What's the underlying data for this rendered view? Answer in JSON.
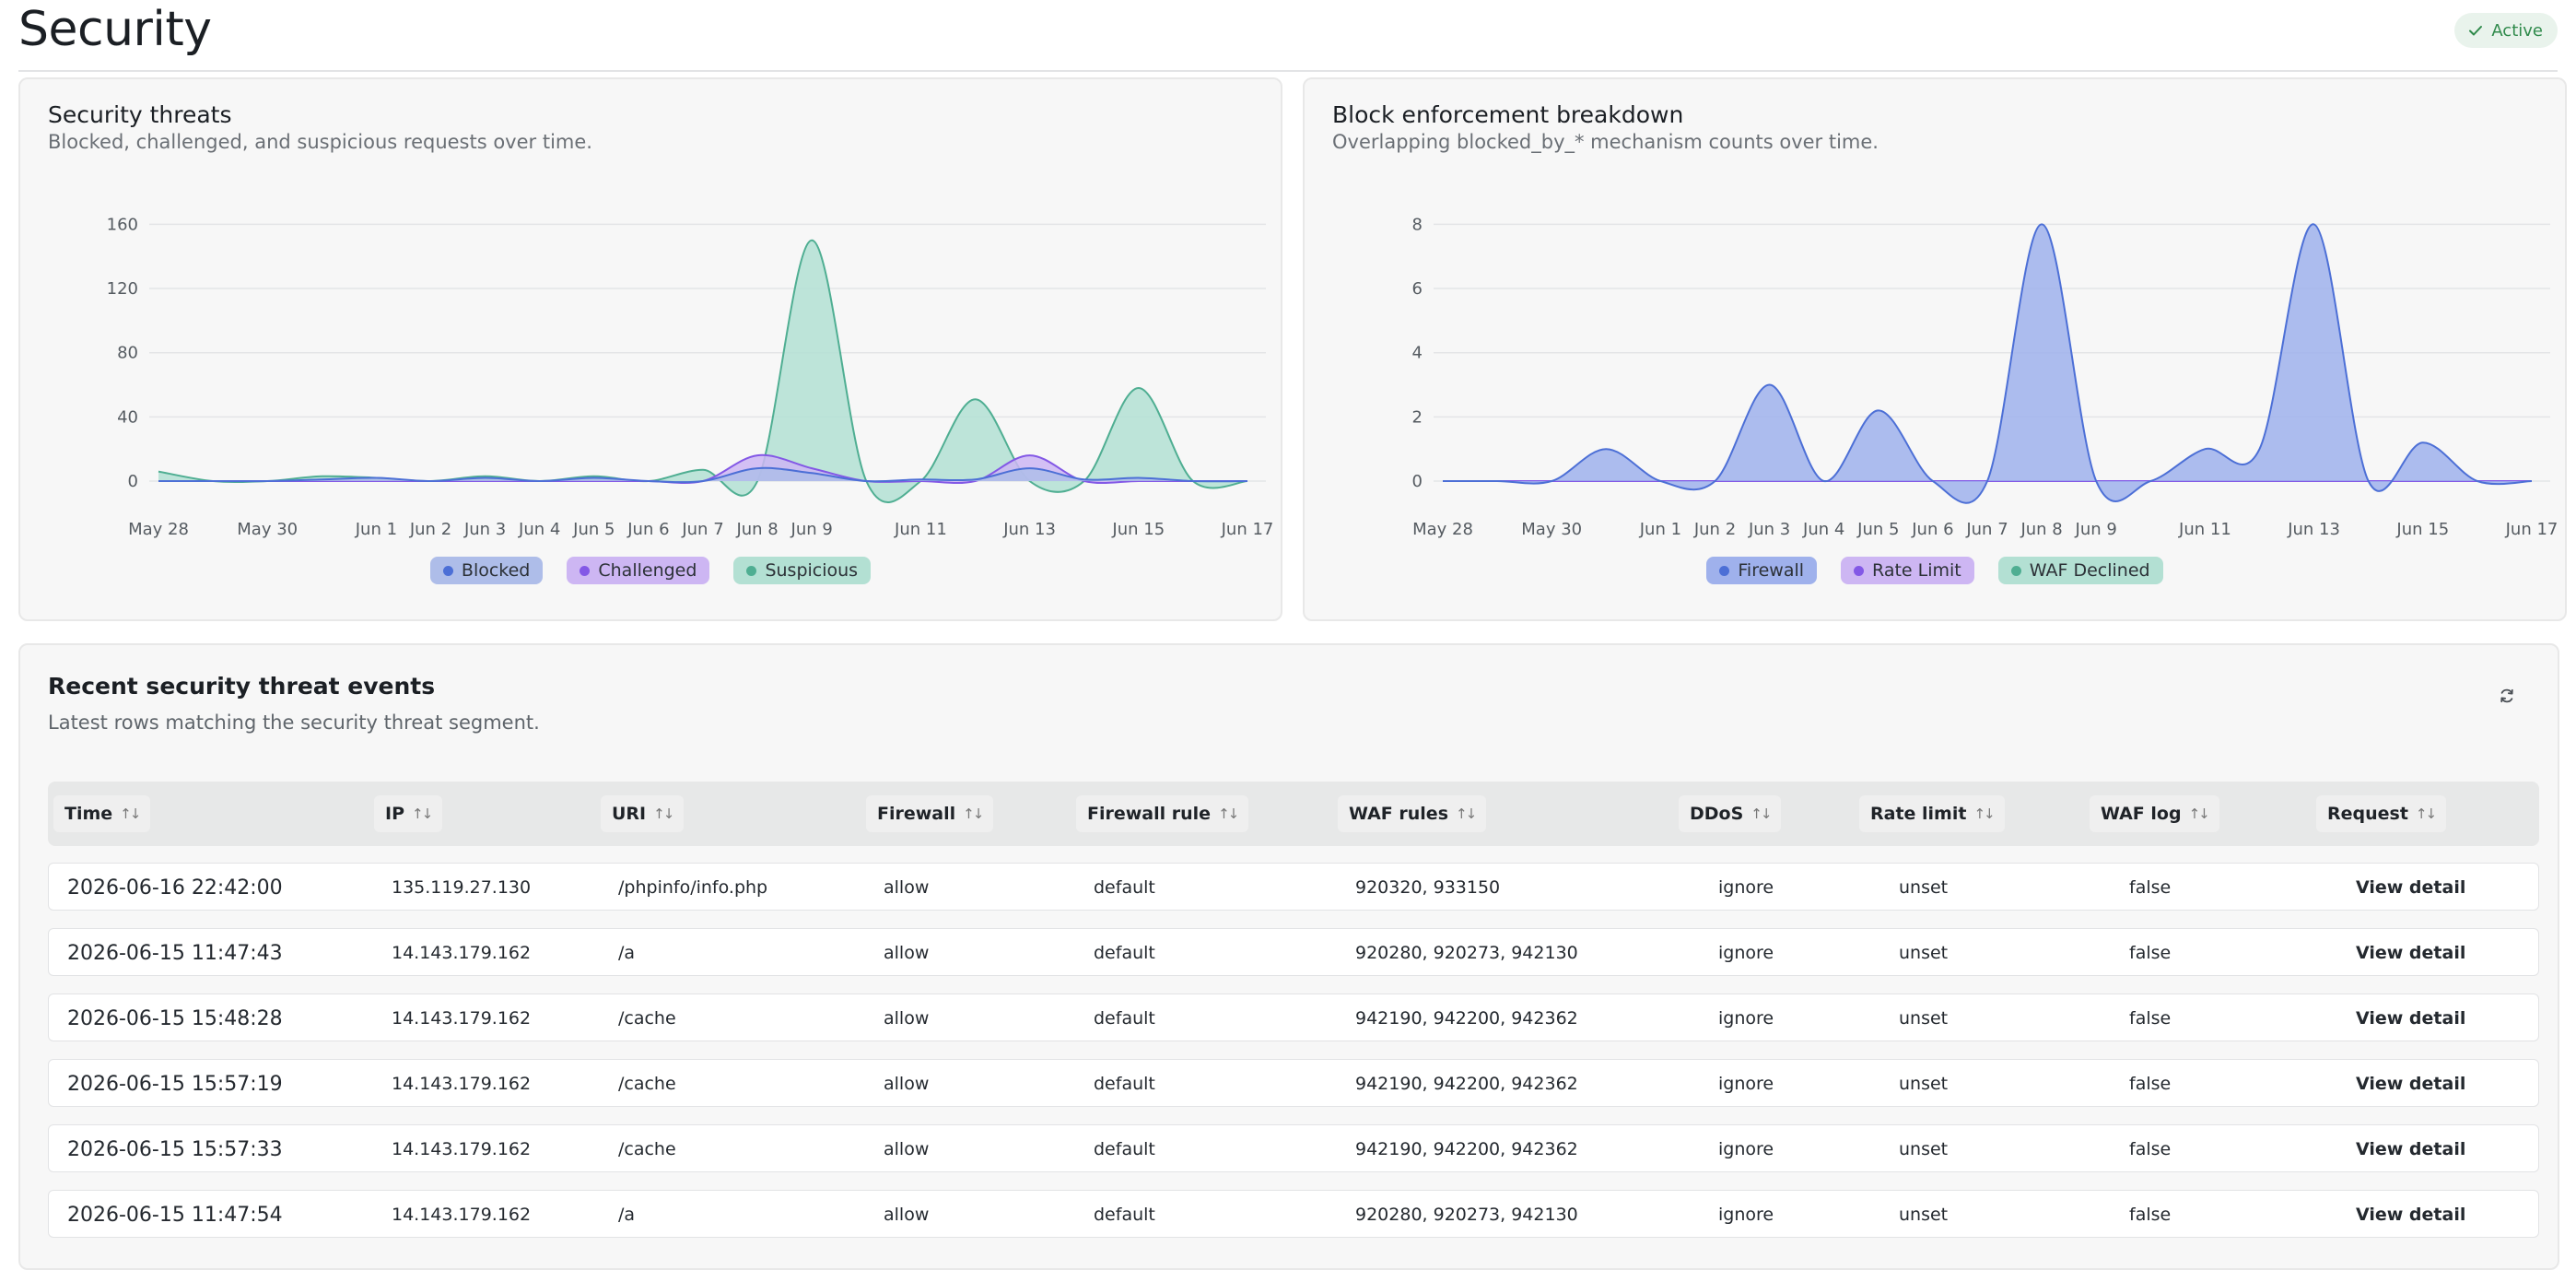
{
  "header": {
    "title": "Security",
    "status": "Active"
  },
  "threats_card": {
    "title": "Security threats",
    "subtitle": "Blocked, challenged, and suspicious requests over time."
  },
  "enforcement_card": {
    "title": "Block enforcement breakdown",
    "subtitle": "Overlapping blocked_by_* mechanism counts over time."
  },
  "chart_data": [
    {
      "type": "area",
      "title": "Security threats",
      "x_ticks": [
        "May 28",
        "May 30",
        "Jun 1",
        "Jun 2",
        "Jun 3",
        "Jun 4",
        "Jun 5",
        "Jun 6",
        "Jun 7",
        "Jun 8",
        "Jun 9",
        "Jun 11",
        "Jun 13",
        "Jun 15",
        "Jun 17"
      ],
      "x": [
        "May 28",
        "May 29",
        "May 30",
        "May 31",
        "Jun 1",
        "Jun 2",
        "Jun 3",
        "Jun 4",
        "Jun 5",
        "Jun 6",
        "Jun 7",
        "Jun 8",
        "Jun 9",
        "Jun 10",
        "Jun 11",
        "Jun 12",
        "Jun 13",
        "Jun 14",
        "Jun 15",
        "Jun 16",
        "Jun 17"
      ],
      "yticks": [
        0,
        40,
        80,
        120,
        160
      ],
      "ylim": [
        0,
        170
      ],
      "legend_position": "bottom",
      "series": [
        {
          "name": "Blocked",
          "color": "#4c6fd6",
          "fill": "#aebde9",
          "values": [
            0,
            0,
            0,
            1,
            2,
            0,
            2,
            0,
            2,
            0,
            0,
            8,
            5,
            0,
            1,
            1,
            8,
            1,
            2,
            0,
            0
          ]
        },
        {
          "name": "Challenged",
          "color": "#8358e6",
          "fill": "#cdb6f3",
          "values": [
            0,
            0,
            0,
            0,
            0,
            0,
            0,
            0,
            0,
            0,
            0,
            16,
            8,
            0,
            0,
            0,
            16,
            0,
            0,
            0,
            0
          ]
        },
        {
          "name": "Suspicious",
          "color": "#4fae92",
          "fill": "#b3e0d3",
          "values": [
            6,
            0,
            0,
            3,
            2,
            0,
            3,
            0,
            3,
            0,
            7,
            0,
            150,
            0,
            0,
            51,
            0,
            0,
            58,
            0,
            0
          ]
        }
      ]
    },
    {
      "type": "area",
      "title": "Block enforcement breakdown",
      "x_ticks": [
        "May 28",
        "May 30",
        "Jun 1",
        "Jun 2",
        "Jun 3",
        "Jun 4",
        "Jun 5",
        "Jun 6",
        "Jun 7",
        "Jun 8",
        "Jun 9",
        "Jun 11",
        "Jun 13",
        "Jun 15",
        "Jun 17"
      ],
      "x": [
        "May 28",
        "May 29",
        "May 30",
        "May 31",
        "Jun 1",
        "Jun 2",
        "Jun 3",
        "Jun 4",
        "Jun 5",
        "Jun 6",
        "Jun 7",
        "Jun 8",
        "Jun 9",
        "Jun 10",
        "Jun 11",
        "Jun 12",
        "Jun 13",
        "Jun 14",
        "Jun 15",
        "Jun 16",
        "Jun 17"
      ],
      "yticks": [
        0,
        2,
        4,
        6,
        8
      ],
      "ylim": [
        0,
        8.5
      ],
      "legend_position": "bottom",
      "series": [
        {
          "name": "Firewall",
          "color": "#4c6fd6",
          "fill": "#9fb1ec",
          "values": [
            0,
            0,
            0,
            1,
            0,
            0,
            3,
            0,
            2.2,
            0,
            0,
            8,
            0,
            0,
            1,
            1,
            8,
            0,
            1.2,
            0,
            0
          ]
        },
        {
          "name": "Rate Limit",
          "color": "#8358e6",
          "fill": "#cdb6f3",
          "values": [
            0,
            0,
            0,
            0,
            0,
            0,
            0,
            0,
            0,
            0,
            0,
            0,
            0,
            0,
            0,
            0,
            0,
            0,
            0,
            0,
            0
          ]
        },
        {
          "name": "WAF Declined",
          "color": "#4fae92",
          "fill": "#b3e0d3",
          "values": [
            0,
            0,
            0,
            0,
            0,
            0,
            0,
            0,
            0,
            0,
            0,
            0,
            0,
            0,
            0,
            0,
            0,
            0,
            0,
            0,
            0
          ]
        }
      ]
    }
  ],
  "events": {
    "title": "Recent security threat events",
    "subtitle": "Latest rows matching the security threat segment.",
    "refresh_icon": "refresh-icon",
    "sort_icon": "↑↓",
    "columns": [
      "Time",
      "IP",
      "URI",
      "Firewall",
      "Firewall rule",
      "WAF rules",
      "DDoS",
      "Rate limit",
      "WAF log",
      "Request"
    ],
    "rows": [
      [
        "2026-06-16 22:42:00",
        "135.119.27.130",
        "/phpinfo/info.php",
        "allow",
        "default",
        "920320, 933150",
        "ignore",
        "unset",
        "false",
        "View detail"
      ],
      [
        "2026-06-15 11:47:43",
        "14.143.179.162",
        "/a",
        "allow",
        "default",
        "920280, 920273, 942130",
        "ignore",
        "unset",
        "false",
        "View detail"
      ],
      [
        "2026-06-15 15:48:28",
        "14.143.179.162",
        "/cache",
        "allow",
        "default",
        "942190, 942200, 942362",
        "ignore",
        "unset",
        "false",
        "View detail"
      ],
      [
        "2026-06-15 15:57:19",
        "14.143.179.162",
        "/cache",
        "allow",
        "default",
        "942190, 942200, 942362",
        "ignore",
        "unset",
        "false",
        "View detail"
      ],
      [
        "2026-06-15 15:57:33",
        "14.143.179.162",
        "/cache",
        "allow",
        "default",
        "942190, 942200, 942362",
        "ignore",
        "unset",
        "false",
        "View detail"
      ],
      [
        "2026-06-15 11:47:54",
        "14.143.179.162",
        "/a",
        "allow",
        "default",
        "920280, 920273, 942130",
        "ignore",
        "unset",
        "false",
        "View detail"
      ]
    ]
  }
}
